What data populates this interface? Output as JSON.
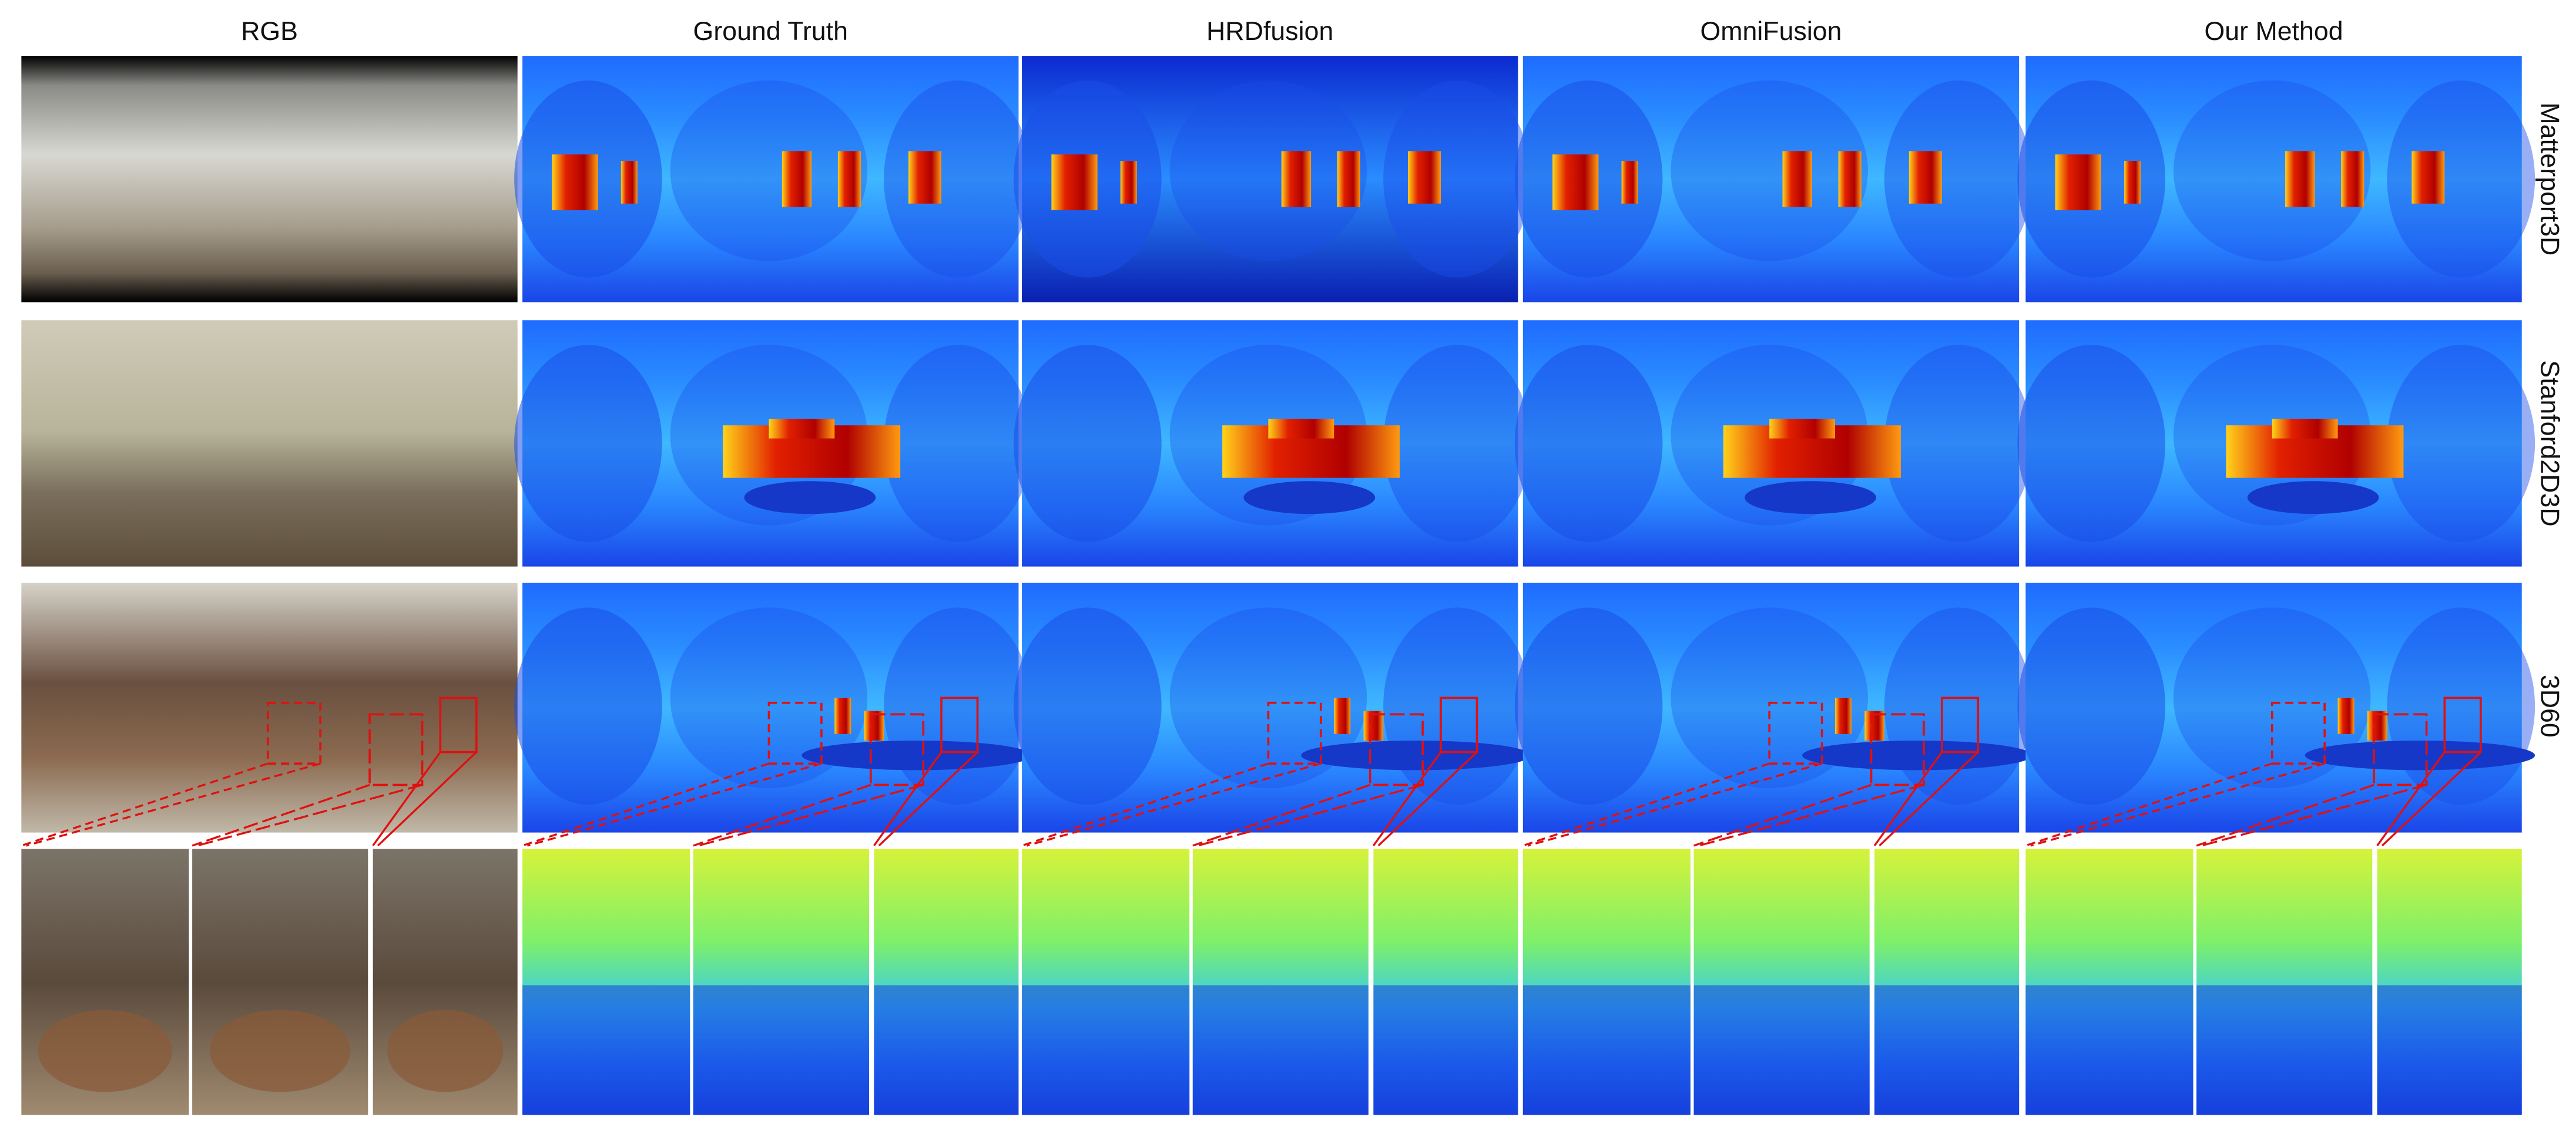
{
  "columns": [
    "RGB",
    "Ground Truth",
    "HRDfusion",
    "OmniFusion",
    "Our Method"
  ],
  "rows": [
    "Matterport3D",
    "Stanford2D3D",
    "3D60"
  ]
}
